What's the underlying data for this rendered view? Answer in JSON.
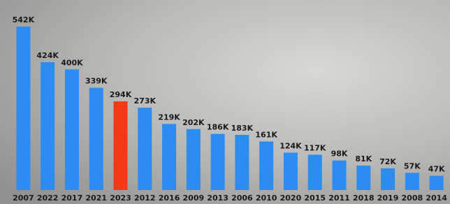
{
  "chart_data": {
    "type": "bar",
    "categories": [
      "2007",
      "2022",
      "2017",
      "2021",
      "2023",
      "2012",
      "2016",
      "2009",
      "2013",
      "2006",
      "2010",
      "2020",
      "2015",
      "2011",
      "2018",
      "2019",
      "2008",
      "2014"
    ],
    "values": [
      542,
      424,
      400,
      339,
      294,
      273,
      219,
      202,
      186,
      183,
      161,
      124,
      117,
      98,
      81,
      72,
      57,
      47
    ],
    "value_labels": [
      "542K",
      "424K",
      "400K",
      "339K",
      "294K",
      "273K",
      "219K",
      "202K",
      "186K",
      "183K",
      "161K",
      "124K",
      "117K",
      "98K",
      "81K",
      "72K",
      "57K",
      "47K"
    ],
    "colors": [
      "#2b8df2",
      "#2b8df2",
      "#2b8df2",
      "#2b8df2",
      "#f23a16",
      "#2b8df2",
      "#2b8df2",
      "#2b8df2",
      "#2b8df2",
      "#2b8df2",
      "#2b8df2",
      "#2b8df2",
      "#2b8df2",
      "#2b8df2",
      "#2b8df2",
      "#2b8df2",
      "#2b8df2",
      "#2b8df2"
    ]
  }
}
